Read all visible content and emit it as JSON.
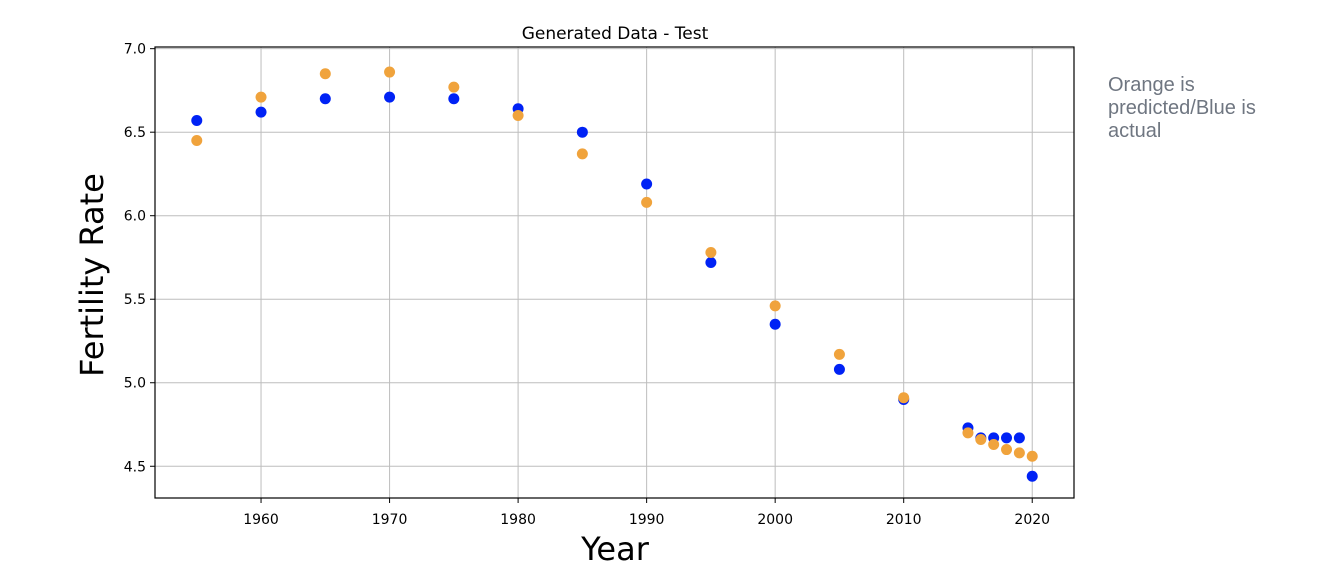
{
  "note": {
    "text": "Orange is predicted/Blue is actual"
  },
  "colors": {
    "actual": "#0022f5",
    "predicted": "#f0a33c",
    "grid": "#bdbdbd",
    "axis": "#000000"
  },
  "chart_data": {
    "type": "scatter",
    "title": "Generated Data - Test",
    "xlabel": "Year",
    "ylabel": "Fertility Rate",
    "xlim": [
      1951.75,
      2023.25
    ],
    "ylim": [
      4.31,
      7.01
    ],
    "x_ticks": [
      1960,
      1970,
      1980,
      1990,
      2000,
      2010,
      2020
    ],
    "y_ticks": [
      4.5,
      5.0,
      5.5,
      6.0,
      6.5,
      7.0
    ],
    "x_tick_labels": [
      "1960",
      "1970",
      "1980",
      "1990",
      "2000",
      "2010",
      "2020"
    ],
    "y_tick_labels": [
      "4.5",
      "5.0",
      "5.5",
      "6.0",
      "6.5",
      "7.0"
    ],
    "grid": true,
    "series": [
      {
        "color": "#0022f5",
        "x": [
          1955,
          1960,
          1965,
          1970,
          1975,
          1980,
          1985,
          1990,
          1995,
          2000,
          2005,
          2010,
          2015,
          2016,
          2017,
          2018,
          2019,
          2020
        ],
        "y": [
          6.57,
          6.62,
          6.7,
          6.71,
          6.7,
          6.64,
          6.5,
          6.19,
          5.72,
          5.35,
          5.08,
          4.9,
          4.73,
          4.67,
          4.67,
          4.67,
          4.67,
          4.44
        ]
      },
      {
        "color": "#f0a33c",
        "x": [
          1955,
          1960,
          1965,
          1970,
          1975,
          1980,
          1985,
          1990,
          1995,
          2000,
          2005,
          2010,
          2015,
          2016,
          2017,
          2018,
          2019,
          2020
        ],
        "y": [
          6.45,
          6.71,
          6.85,
          6.86,
          6.77,
          6.6,
          6.37,
          6.08,
          5.78,
          5.46,
          5.17,
          4.91,
          4.7,
          4.66,
          4.63,
          4.6,
          4.58,
          4.56
        ]
      }
    ]
  }
}
